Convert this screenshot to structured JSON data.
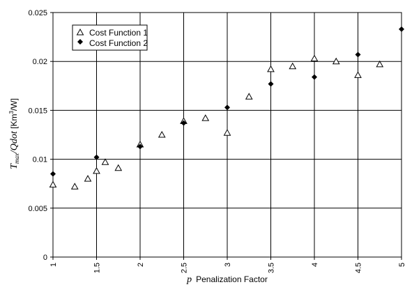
{
  "chart_data": {
    "type": "scatter",
    "title": "",
    "xlabel_symbol": "p",
    "xlabel": "Penalization Factor",
    "ylabel_italic": "T_max/Qdot",
    "ylabel_unit": "[Km³/W]",
    "ylabel_parts": {
      "t": "T",
      "sub": "max",
      "mid": "/Qdot",
      "unit_a": " [Km",
      "unit_sup": "3",
      "unit_b": "/W]"
    },
    "xlim": [
      1,
      5
    ],
    "ylim": [
      0,
      0.025
    ],
    "x_ticks": [
      "1",
      "1.5",
      "2",
      "2.5",
      "3",
      "3.5",
      "4",
      "4.5",
      "5"
    ],
    "y_ticks": [
      "0",
      "0.005",
      "0.01",
      "0.015",
      "0.02",
      "0.025"
    ],
    "grid": true,
    "legend_position": "top-left",
    "series": [
      {
        "name": "Cost Function 1",
        "marker": "triangle-open",
        "points": [
          [
            1.0,
            0.0074
          ],
          [
            1.25,
            0.0072
          ],
          [
            1.4,
            0.008
          ],
          [
            1.5,
            0.0088
          ],
          [
            1.6,
            0.0097
          ],
          [
            1.75,
            0.0091
          ],
          [
            2.0,
            0.0115
          ],
          [
            2.25,
            0.0125
          ],
          [
            2.5,
            0.0139
          ],
          [
            2.75,
            0.0142
          ],
          [
            3.0,
            0.0127
          ],
          [
            3.25,
            0.0164
          ],
          [
            3.5,
            0.0192
          ],
          [
            3.75,
            0.0195
          ],
          [
            4.0,
            0.0203
          ],
          [
            4.25,
            0.02
          ],
          [
            4.5,
            0.0186
          ],
          [
            4.75,
            0.0197
          ]
        ]
      },
      {
        "name": "Cost Function 2",
        "marker": "diamond-filled",
        "points": [
          [
            1.0,
            0.0085
          ],
          [
            1.5,
            0.0102
          ],
          [
            2.0,
            0.0113
          ],
          [
            2.5,
            0.0137
          ],
          [
            3.0,
            0.0153
          ],
          [
            3.5,
            0.0177
          ],
          [
            4.0,
            0.0184
          ],
          [
            4.5,
            0.0207
          ],
          [
            5.0,
            0.0233
          ]
        ]
      }
    ]
  }
}
